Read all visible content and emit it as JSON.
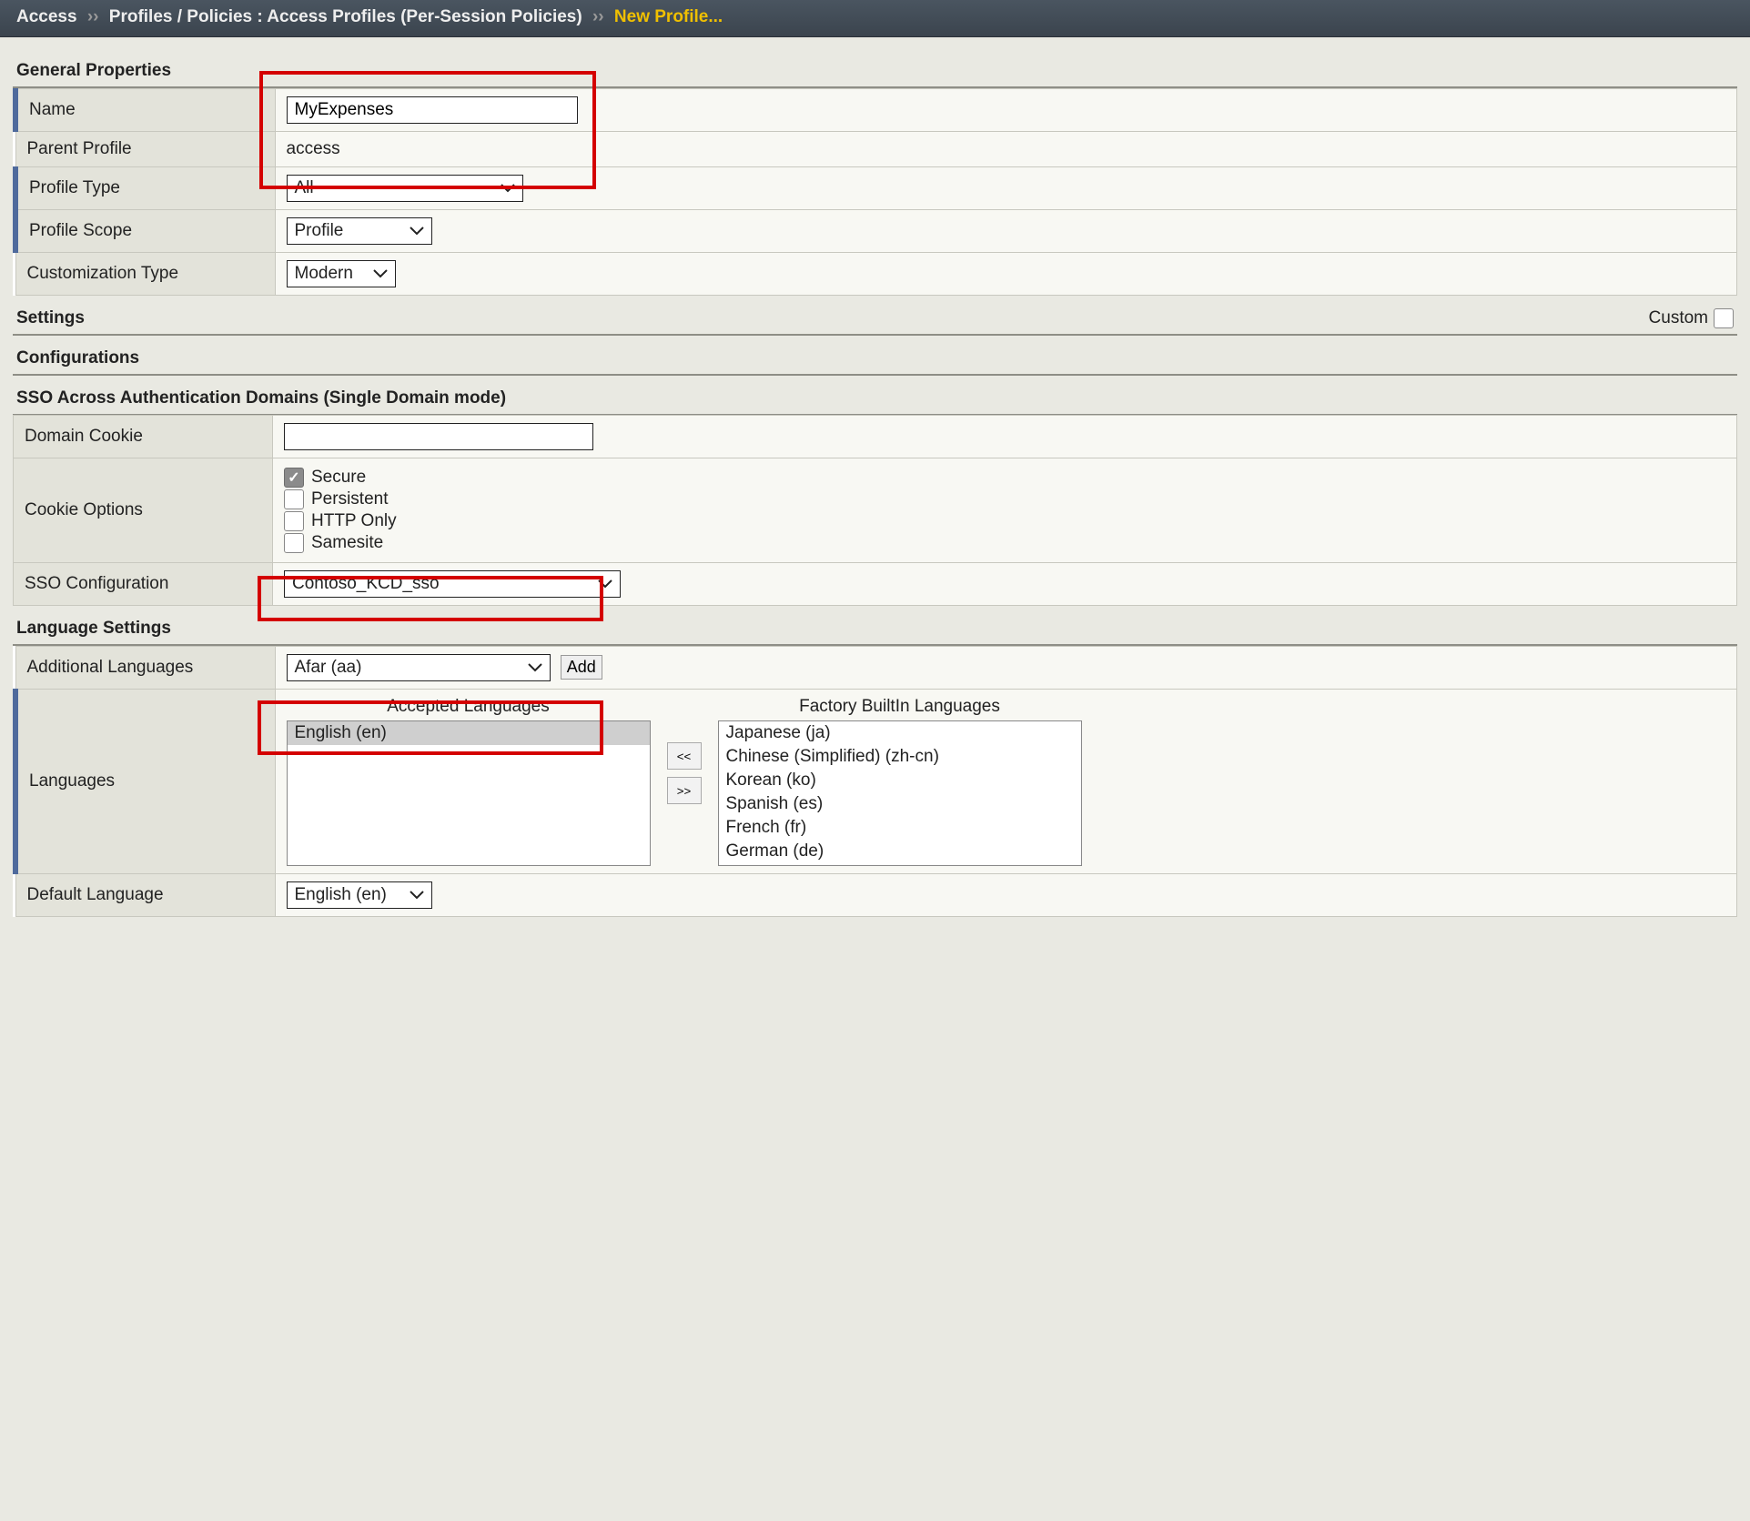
{
  "breadcrumb": {
    "root": "Access",
    "mid": "Profiles / Policies : Access Profiles (Per-Session Policies)",
    "current": "New Profile...",
    "sep": "››"
  },
  "sections": {
    "general": "General Properties",
    "settings": "Settings",
    "configurations": "Configurations",
    "sso_domains": "SSO Across Authentication Domains (Single Domain mode)",
    "language": "Language Settings",
    "custom_label": "Custom"
  },
  "general": {
    "name_label": "Name",
    "name_value": "MyExpenses",
    "parent_label": "Parent Profile",
    "parent_value": "access",
    "profile_type_label": "Profile Type",
    "profile_type_value": "All",
    "profile_scope_label": "Profile Scope",
    "profile_scope_value": "Profile",
    "customization_type_label": "Customization Type",
    "customization_type_value": "Modern"
  },
  "sso": {
    "domain_cookie_label": "Domain Cookie",
    "domain_cookie_value": "",
    "cookie_options_label": "Cookie Options",
    "options": [
      {
        "label": "Secure",
        "checked": true
      },
      {
        "label": "Persistent",
        "checked": false
      },
      {
        "label": "HTTP Only",
        "checked": false
      },
      {
        "label": "Samesite",
        "checked": false
      }
    ],
    "sso_config_label": "SSO Configuration",
    "sso_config_value": "Contoso_KCD_sso"
  },
  "lang": {
    "additional_label": "Additional Languages",
    "additional_value": "Afar (aa)",
    "add_button": "Add",
    "languages_label": "Languages",
    "accepted_header": "Accepted Languages",
    "factory_header": "Factory BuiltIn Languages",
    "accepted_items": [
      {
        "label": "English (en)",
        "selected": true
      }
    ],
    "factory_items": [
      {
        "label": "Japanese (ja)"
      },
      {
        "label": "Chinese (Simplified) (zh-cn)"
      },
      {
        "label": "Korean (ko)"
      },
      {
        "label": "Spanish (es)"
      },
      {
        "label": "French (fr)"
      },
      {
        "label": "German (de)"
      }
    ],
    "move_left": "<<",
    "move_right": ">>",
    "default_label": "Default Language",
    "default_value": "English (en)"
  },
  "highlight_color": "#d40000"
}
